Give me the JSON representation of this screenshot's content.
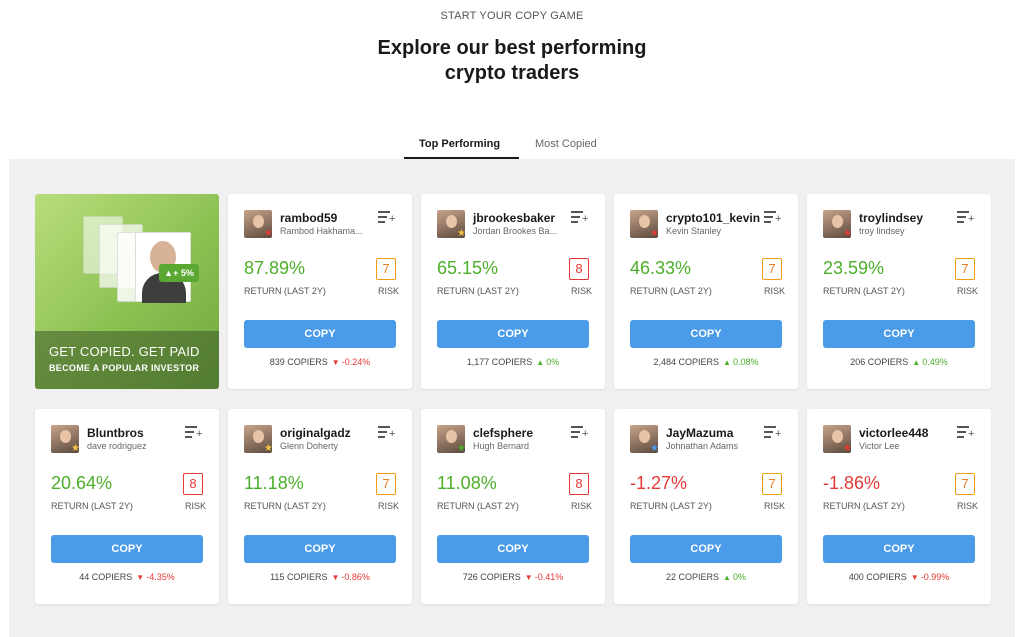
{
  "header": {
    "eyebrow": "START YOUR COPY GAME",
    "title": "Explore our best performing crypto traders"
  },
  "tabs": [
    {
      "label": "Top Performing",
      "active": true
    },
    {
      "label": "Most Copied",
      "active": false
    }
  ],
  "promo": {
    "line1": "GET COPIED. GET PAID",
    "line2": "BECOME A POPULAR INVESTOR",
    "bubble": "+ 5%"
  },
  "colors": {
    "accent": "#4a9be8",
    "positive": "#4caf2a",
    "negative": "#e53935",
    "risk7": "#e67e22",
    "risk8": "#e53935"
  },
  "traders": [
    {
      "username": "rambod59",
      "fullname": "Rambod Hakhama...",
      "return": "87.89%",
      "return_label": "RETURN (LAST 2Y)",
      "risk": "7",
      "risk_label": "RISK",
      "copy_label": "COPY",
      "copiers": "839 COPIERS",
      "change": "-0.24%",
      "trend": "down",
      "badge": "red-star"
    },
    {
      "username": "jbrookesbaker",
      "fullname": "Jordan Brookes Ba...",
      "return": "65.15%",
      "return_label": "RETURN (LAST 2Y)",
      "risk": "8",
      "risk_label": "RISK",
      "copy_label": "COPY",
      "copiers": "1,177 COPIERS",
      "change": "0%",
      "trend": "up",
      "badge": "gold-star"
    },
    {
      "username": "crypto101_kevin",
      "fullname": "Kevin Stanley",
      "return": "46.33%",
      "return_label": "RETURN (LAST 2Y)",
      "risk": "7",
      "risk_label": "RISK",
      "copy_label": "COPY",
      "copiers": "2,484 COPIERS",
      "change": "0.08%",
      "trend": "up",
      "badge": "red-star"
    },
    {
      "username": "troylindsey",
      "fullname": "troy lindsey",
      "return": "23.59%",
      "return_label": "RETURN (LAST 2Y)",
      "risk": "7",
      "risk_label": "RISK",
      "copy_label": "COPY",
      "copiers": "206 COPIERS",
      "change": "0.49%",
      "trend": "up",
      "badge": "red-star"
    },
    {
      "username": "Bluntbros",
      "fullname": "dave rodriguez",
      "return": "20.64%",
      "return_label": "RETURN (LAST 2Y)",
      "risk": "8",
      "risk_label": "RISK",
      "copy_label": "COPY",
      "copiers": "44 COPIERS",
      "change": "-4.35%",
      "trend": "down",
      "badge": "gold-star"
    },
    {
      "username": "originalgadz",
      "fullname": "Glenn Doherty",
      "return": "11.18%",
      "return_label": "RETURN (LAST 2Y)",
      "risk": "7",
      "risk_label": "RISK",
      "copy_label": "COPY",
      "copiers": "115 COPIERS",
      "change": "-0.86%",
      "trend": "down",
      "badge": "gold-star"
    },
    {
      "username": "clefsphere",
      "fullname": "Hugh Bernard",
      "return": "11.08%",
      "return_label": "RETURN (LAST 2Y)",
      "risk": "8",
      "risk_label": "RISK",
      "copy_label": "COPY",
      "copiers": "726 COPIERS",
      "change": "-0.41%",
      "trend": "down",
      "badge": "green-star"
    },
    {
      "username": "JayMazuma",
      "fullname": "Johnathan Adams",
      "return": "-1.27%",
      "return_label": "RETURN (LAST 2Y)",
      "risk": "7",
      "risk_label": "RISK",
      "copy_label": "COPY",
      "copiers": "22 COPIERS",
      "change": "0%",
      "trend": "up",
      "badge": "blue-star"
    },
    {
      "username": "victorlee448",
      "fullname": "Victor Lee",
      "return": "-1.86%",
      "return_label": "RETURN (LAST 2Y)",
      "risk": "7",
      "risk_label": "RISK",
      "copy_label": "COPY",
      "copiers": "400 COPIERS",
      "change": "-0.99%",
      "trend": "down",
      "badge": "red-star"
    }
  ]
}
